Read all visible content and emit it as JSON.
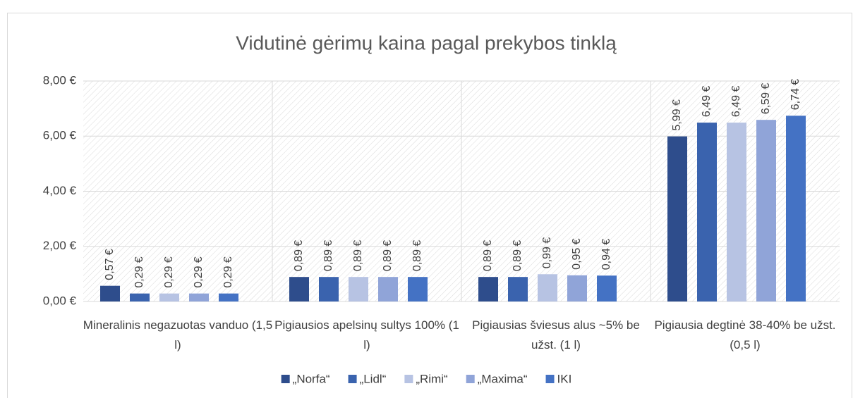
{
  "chart_data": {
    "type": "bar",
    "title": "Vidutinė gėrimų kaina pagal prekybos tinklą",
    "categories": [
      "Mineralinis negazuotas vanduo (1,5 l)",
      "Pigiausios apelsinų sultys 100% (1 l)",
      "Pigiausias šviesus alus ~5% be užst. (1 l)",
      "Pigiausia degtinė 38-40% be užst. (0,5 l)"
    ],
    "series": [
      {
        "name": "„Norfa“",
        "color": "#2e4d8c",
        "values": [
          0.57,
          0.89,
          0.89,
          5.99
        ],
        "value_labels": [
          "0,57 €",
          "0,89 €",
          "0,89 €",
          "5,99 €"
        ]
      },
      {
        "name": "„Lidl“",
        "color": "#3a63ae",
        "values": [
          0.29,
          0.89,
          0.89,
          6.49
        ],
        "value_labels": [
          "0,29 €",
          "0,89 €",
          "0,89 €",
          "6,49 €"
        ]
      },
      {
        "name": "„Rimi“",
        "color": "#b7c3e3",
        "values": [
          0.29,
          0.89,
          0.99,
          6.49
        ],
        "value_labels": [
          "0,29 €",
          "0,89 €",
          "0,99 €",
          "6,49 €"
        ]
      },
      {
        "name": "„Maxima“",
        "color": "#90a4d8",
        "values": [
          0.29,
          0.89,
          0.95,
          6.59
        ],
        "value_labels": [
          "0,29 €",
          "0,89 €",
          "0,95 €",
          "6,59 €"
        ]
      },
      {
        "name": "IKI",
        "color": "#4472c4",
        "values": [
          0.29,
          0.89,
          0.94,
          6.74
        ],
        "value_labels": [
          "0,29 €",
          "0,89 €",
          "0,94 €",
          "6,74 €"
        ]
      }
    ],
    "ylim": [
      0,
      8
    ],
    "yticks": [
      {
        "value": 0,
        "label": "0,00 €"
      },
      {
        "value": 2,
        "label": "2,00 €"
      },
      {
        "value": 4,
        "label": "4,00 €"
      },
      {
        "value": 6,
        "label": "6,00 €"
      },
      {
        "value": 8,
        "label": "8,00 €"
      }
    ],
    "grid": true,
    "legend": "bottom"
  }
}
